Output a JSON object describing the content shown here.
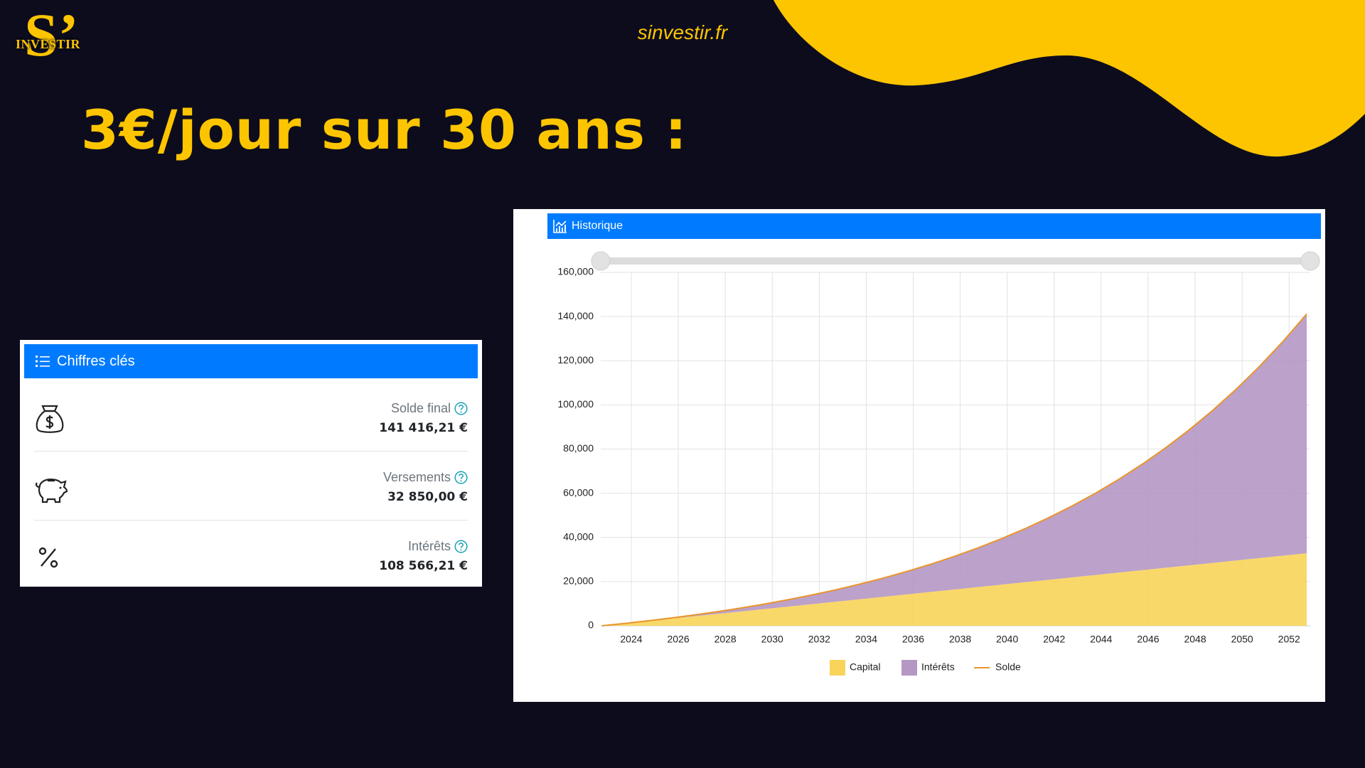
{
  "header": {
    "logo_letter": "S’",
    "logo_text": "INVESTIR",
    "site": "sinvestir.fr",
    "title": "3€/jour sur 30 ans :"
  },
  "key_figures": {
    "title": "Chiffres clés",
    "rows": [
      {
        "label": "Solde final",
        "value": "141 416,21 €"
      },
      {
        "label": "Versements",
        "value": "32 850,00 €"
      },
      {
        "label": "Intérêts",
        "value": "108 566,21 €"
      }
    ]
  },
  "chart_data": {
    "type": "area",
    "title": "Historique",
    "stacked": true,
    "grid": true,
    "legend": "bottom",
    "x": [
      2022.75,
      2023.75,
      2024.75,
      2025.75,
      2026.75,
      2027.75,
      2028.75,
      2029.75,
      2030.75,
      2031.75,
      2032.75,
      2033.75,
      2034.75,
      2035.75,
      2036.75,
      2037.75,
      2038.75,
      2039.75,
      2040.75,
      2041.75,
      2042.75,
      2043.75,
      2044.75,
      2045.75,
      2046.75,
      2047.75,
      2048.75,
      2049.75,
      2050.75,
      2051.75,
      2052.75
    ],
    "xlim": [
      2022.7,
      2052.9
    ],
    "xticks": [
      2024,
      2026,
      2028,
      2030,
      2032,
      2034,
      2036,
      2038,
      2040,
      2042,
      2044,
      2046,
      2048,
      2050,
      2052
    ],
    "ylim": [
      0,
      160000
    ],
    "yticks": [
      0,
      {
        "value": 20000,
        "label": "20,000"
      },
      {
        "value": 40000,
        "label": "40,000"
      },
      {
        "value": 60000,
        "label": "60,000"
      },
      {
        "value": 80000,
        "label": "80,000"
      },
      {
        "value": 100000,
        "label": "100,000"
      },
      {
        "value": 120000,
        "label": "120,000"
      },
      {
        "value": 140000,
        "label": "140,000"
      },
      {
        "value": 160000,
        "label": "160,000"
      }
    ],
    "series": [
      {
        "name": "Capital",
        "type": "area",
        "color": "#f8d45a",
        "values": [
          0,
          1095,
          2190,
          3285,
          4380,
          5475,
          6570,
          7665,
          8760,
          9855,
          10950,
          12045,
          13140,
          14235,
          15330,
          16425,
          17520,
          18615,
          19710,
          20805,
          21900,
          22995,
          24090,
          25185,
          26280,
          27375,
          28470,
          29565,
          30660,
          31755,
          32850
        ]
      },
      {
        "name": "Intérêts",
        "type": "area",
        "color": "#b597c4",
        "values": [
          0,
          0,
          95,
          294,
          606,
          1039,
          1606,
          2317,
          3186,
          4225,
          5450,
          6877,
          8523,
          10407,
          12552,
          14978,
          17709,
          20774,
          24201,
          28022,
          32269,
          36982,
          42200,
          47968,
          54332,
          61345,
          69064,
          77549,
          86868,
          97093,
          108301
        ]
      },
      {
        "name": "Solde",
        "type": "line",
        "color": "#e8952c",
        "values": [
          0,
          1095,
          2285,
          3579,
          4986,
          6514,
          8176,
          9982,
          11946,
          14080,
          16400,
          18922,
          21663,
          24642,
          27882,
          31403,
          35229,
          39389,
          43911,
          48827,
          54169,
          59977,
          66290,
          73153,
          80612,
          88720,
          97534,
          107114,
          117528,
          128848,
          141151
        ]
      }
    ]
  }
}
